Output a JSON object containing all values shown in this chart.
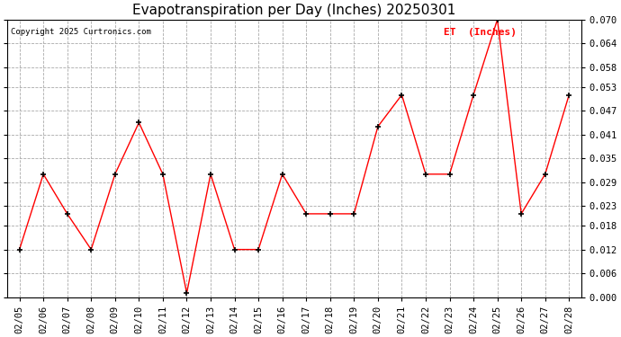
{
  "title": "Evapotranspiration per Day (Inches) 20250301",
  "copyright": "Copyright 2025 Curtronics.com",
  "legend_label": "ET  (Inches)",
  "legend_color": "red",
  "line_color": "red",
  "marker_color": "black",
  "background_color": "#ffffff",
  "dates": [
    "02/05",
    "02/06",
    "02/07",
    "02/08",
    "02/09",
    "02/10",
    "02/11",
    "02/12",
    "02/13",
    "02/14",
    "02/15",
    "02/16",
    "02/17",
    "02/18",
    "02/19",
    "02/20",
    "02/21",
    "02/22",
    "02/23",
    "02/24",
    "02/25",
    "02/26",
    "02/27",
    "02/28"
  ],
  "values": [
    0.012,
    0.031,
    0.021,
    0.012,
    0.031,
    0.044,
    0.031,
    0.001,
    0.031,
    0.012,
    0.012,
    0.031,
    0.021,
    0.021,
    0.021,
    0.043,
    0.051,
    0.031,
    0.031,
    0.051,
    0.07,
    0.021,
    0.031,
    0.051
  ],
  "ylim": [
    0.0,
    0.07
  ],
  "yticks": [
    0.0,
    0.006,
    0.012,
    0.018,
    0.023,
    0.029,
    0.035,
    0.041,
    0.047,
    0.053,
    0.058,
    0.064,
    0.07
  ]
}
